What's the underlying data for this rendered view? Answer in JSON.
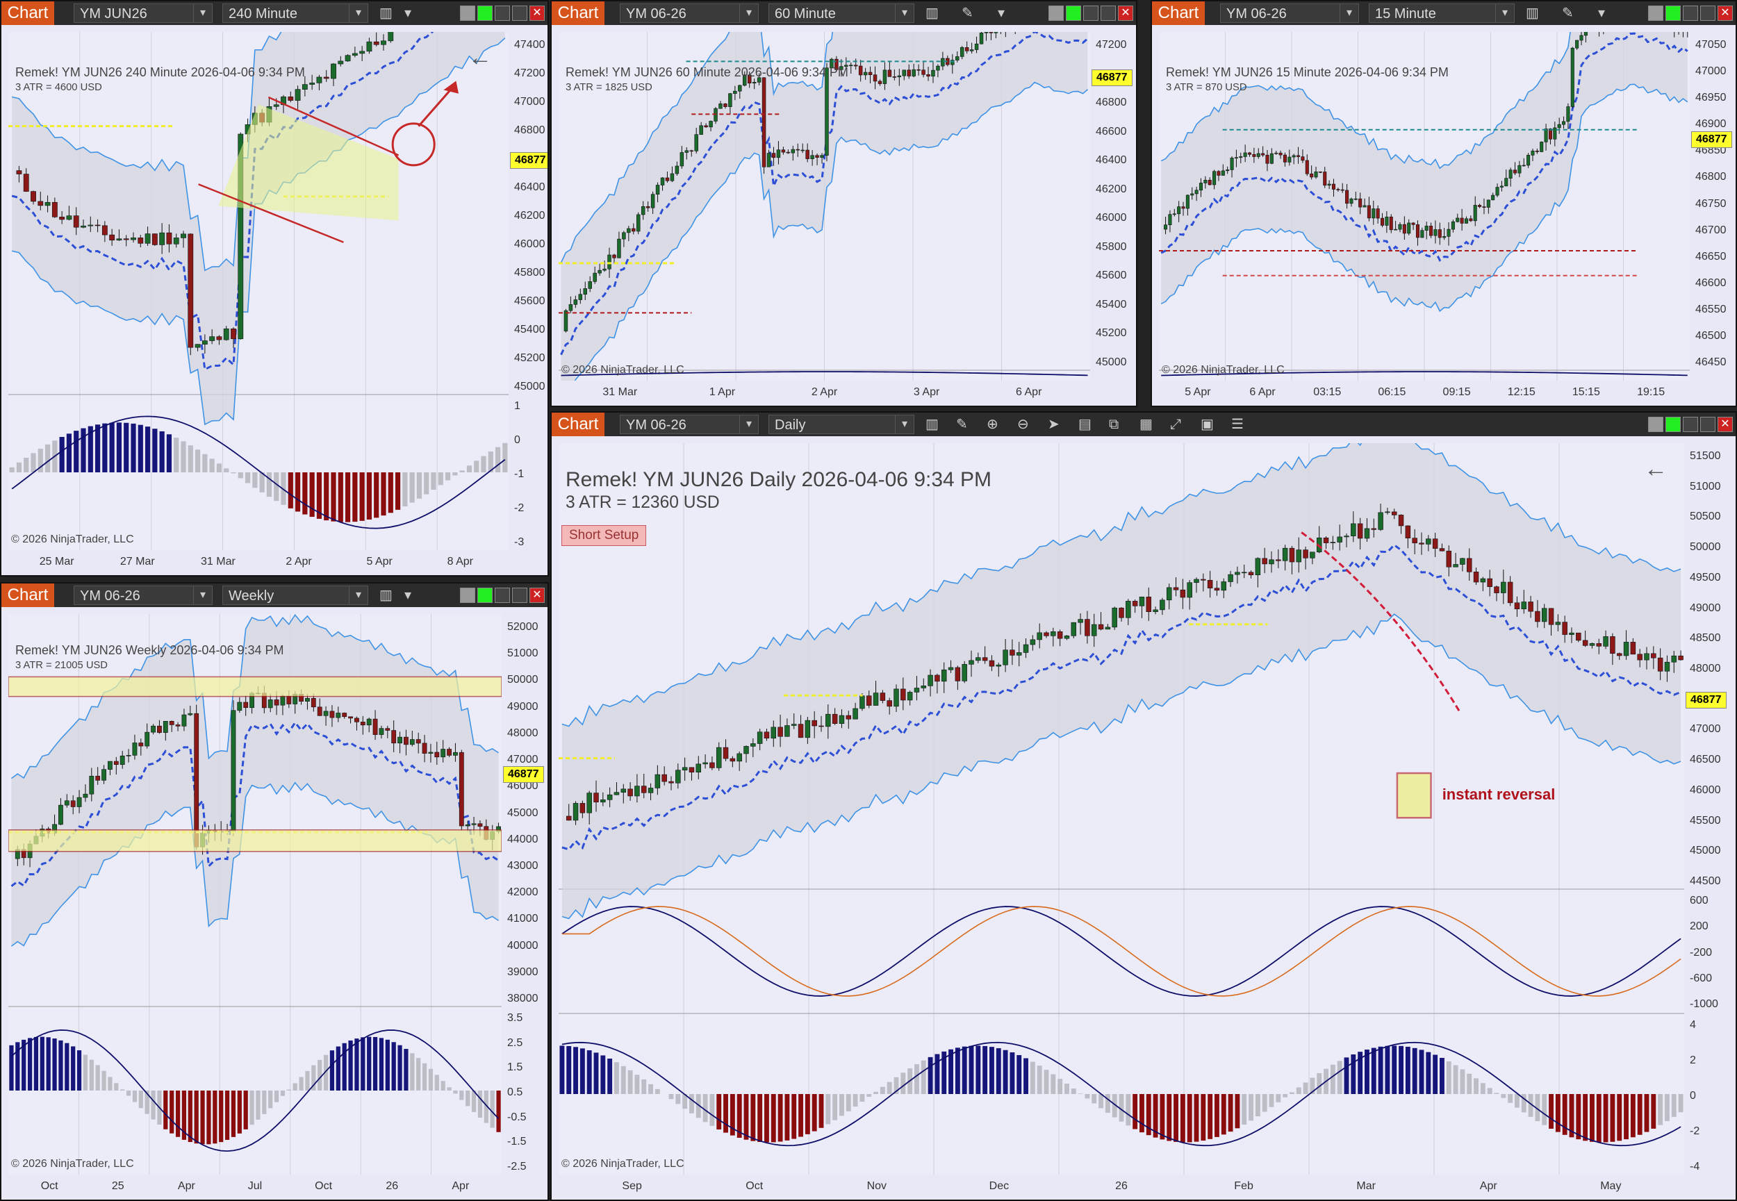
{
  "brand": "Chart",
  "copyright": "© 2026 NinjaTrader, LLC",
  "colors": {
    "accent": "#d6541b",
    "bull": "#1a6b2c",
    "bear": "#8c1818",
    "band": "#3f93e6",
    "trend_up": "#2c4fd6",
    "trend_down": "#d21d3a",
    "level_yellow": "#f0ee2a",
    "price_tag": "#ffff2e"
  },
  "panels": [
    {
      "id": "p240",
      "instrument": "YM JUN26",
      "interval": "240 Minute",
      "title": "Remek!  YM JUN26  240 Minute  2026-04-06 9:34 PM",
      "atr": "3 ATR = 4600 USD",
      "price_labels": [
        "47400",
        "47200",
        "47000",
        "46800",
        "46600",
        "46400",
        "46200",
        "46000",
        "45800",
        "45600",
        "45400",
        "45200",
        "45000"
      ],
      "current_price": "46877",
      "osc_labels": [
        "1",
        "0",
        "-1",
        "-2",
        "-3"
      ],
      "dates": [
        "25 Mar",
        "27 Mar",
        "31 Mar",
        "2 Apr",
        "5 Apr",
        "8 Apr"
      ]
    },
    {
      "id": "p60",
      "instrument": "YM 06-26",
      "interval": "60 Minute",
      "title": "Remek!  YM JUN26  60 Minute  2026-04-06 9:34 PM",
      "atr": "3 ATR = 1825 USD",
      "price_labels": [
        "47200",
        "47000",
        "46800",
        "46600",
        "46400",
        "46200",
        "46000",
        "45800",
        "45600",
        "45400",
        "45200",
        "45000"
      ],
      "current_price": "46877",
      "dates": [
        "31 Mar",
        "1 Apr",
        "2 Apr",
        "3 Apr",
        "6 Apr"
      ]
    },
    {
      "id": "p15",
      "instrument": "YM 06-26",
      "interval": "15 Minute",
      "title": "Remek!  YM JUN26  15 Minute  2026-04-06 9:34 PM",
      "atr": "3 ATR = 870 USD",
      "price_labels": [
        "47050",
        "47000",
        "46950",
        "46900",
        "46850",
        "46800",
        "46750",
        "46700",
        "46650",
        "46600",
        "46550",
        "46500",
        "46450"
      ],
      "current_price": "46877",
      "dates": [
        "5 Apr",
        "6 Apr",
        "03:15",
        "06:15",
        "09:15",
        "12:15",
        "15:15",
        "19:15"
      ]
    },
    {
      "id": "pW",
      "instrument": "YM 06-26",
      "interval": "Weekly",
      "title": "Remek!  YM JUN26  Weekly  2026-04-06 9:34 PM",
      "atr": "3 ATR = 21005 USD",
      "price_labels": [
        "52000",
        "51000",
        "50000",
        "49000",
        "48000",
        "47000",
        "46000",
        "45000",
        "44000",
        "43000",
        "42000",
        "41000",
        "40000",
        "39000",
        "38000"
      ],
      "current_price": "46877",
      "osc_labels": [
        "3.5",
        "2.5",
        "1.5",
        "0.5",
        "-0.5",
        "-1.5",
        "-2.5"
      ],
      "dates": [
        "Oct",
        "25",
        "Apr",
        "Jul",
        "Oct",
        "26",
        "Apr"
      ]
    },
    {
      "id": "pD",
      "instrument": "YM 06-26",
      "interval": "Daily",
      "title": "Remek!  YM JUN26  Daily  2026-04-06 9:34 PM",
      "atr": "3 ATR = 12360 USD",
      "setup_label": "Short Setup",
      "note": "instant reversal",
      "price_labels": [
        "51500",
        "51000",
        "50500",
        "50000",
        "49500",
        "49000",
        "48500",
        "48000",
        "47500",
        "47000",
        "46500",
        "46000",
        "45500",
        "45000",
        "44500"
      ],
      "current_price": "46877",
      "macd_labels": [
        "600",
        "200",
        "-200",
        "-600",
        "-1000"
      ],
      "osc_labels": [
        "4",
        "2",
        "0",
        "-2",
        "-4"
      ],
      "dates": [
        "Sep",
        "Oct",
        "Nov",
        "Dec",
        "26",
        "Feb",
        "Mar",
        "Apr",
        "May"
      ]
    }
  ]
}
